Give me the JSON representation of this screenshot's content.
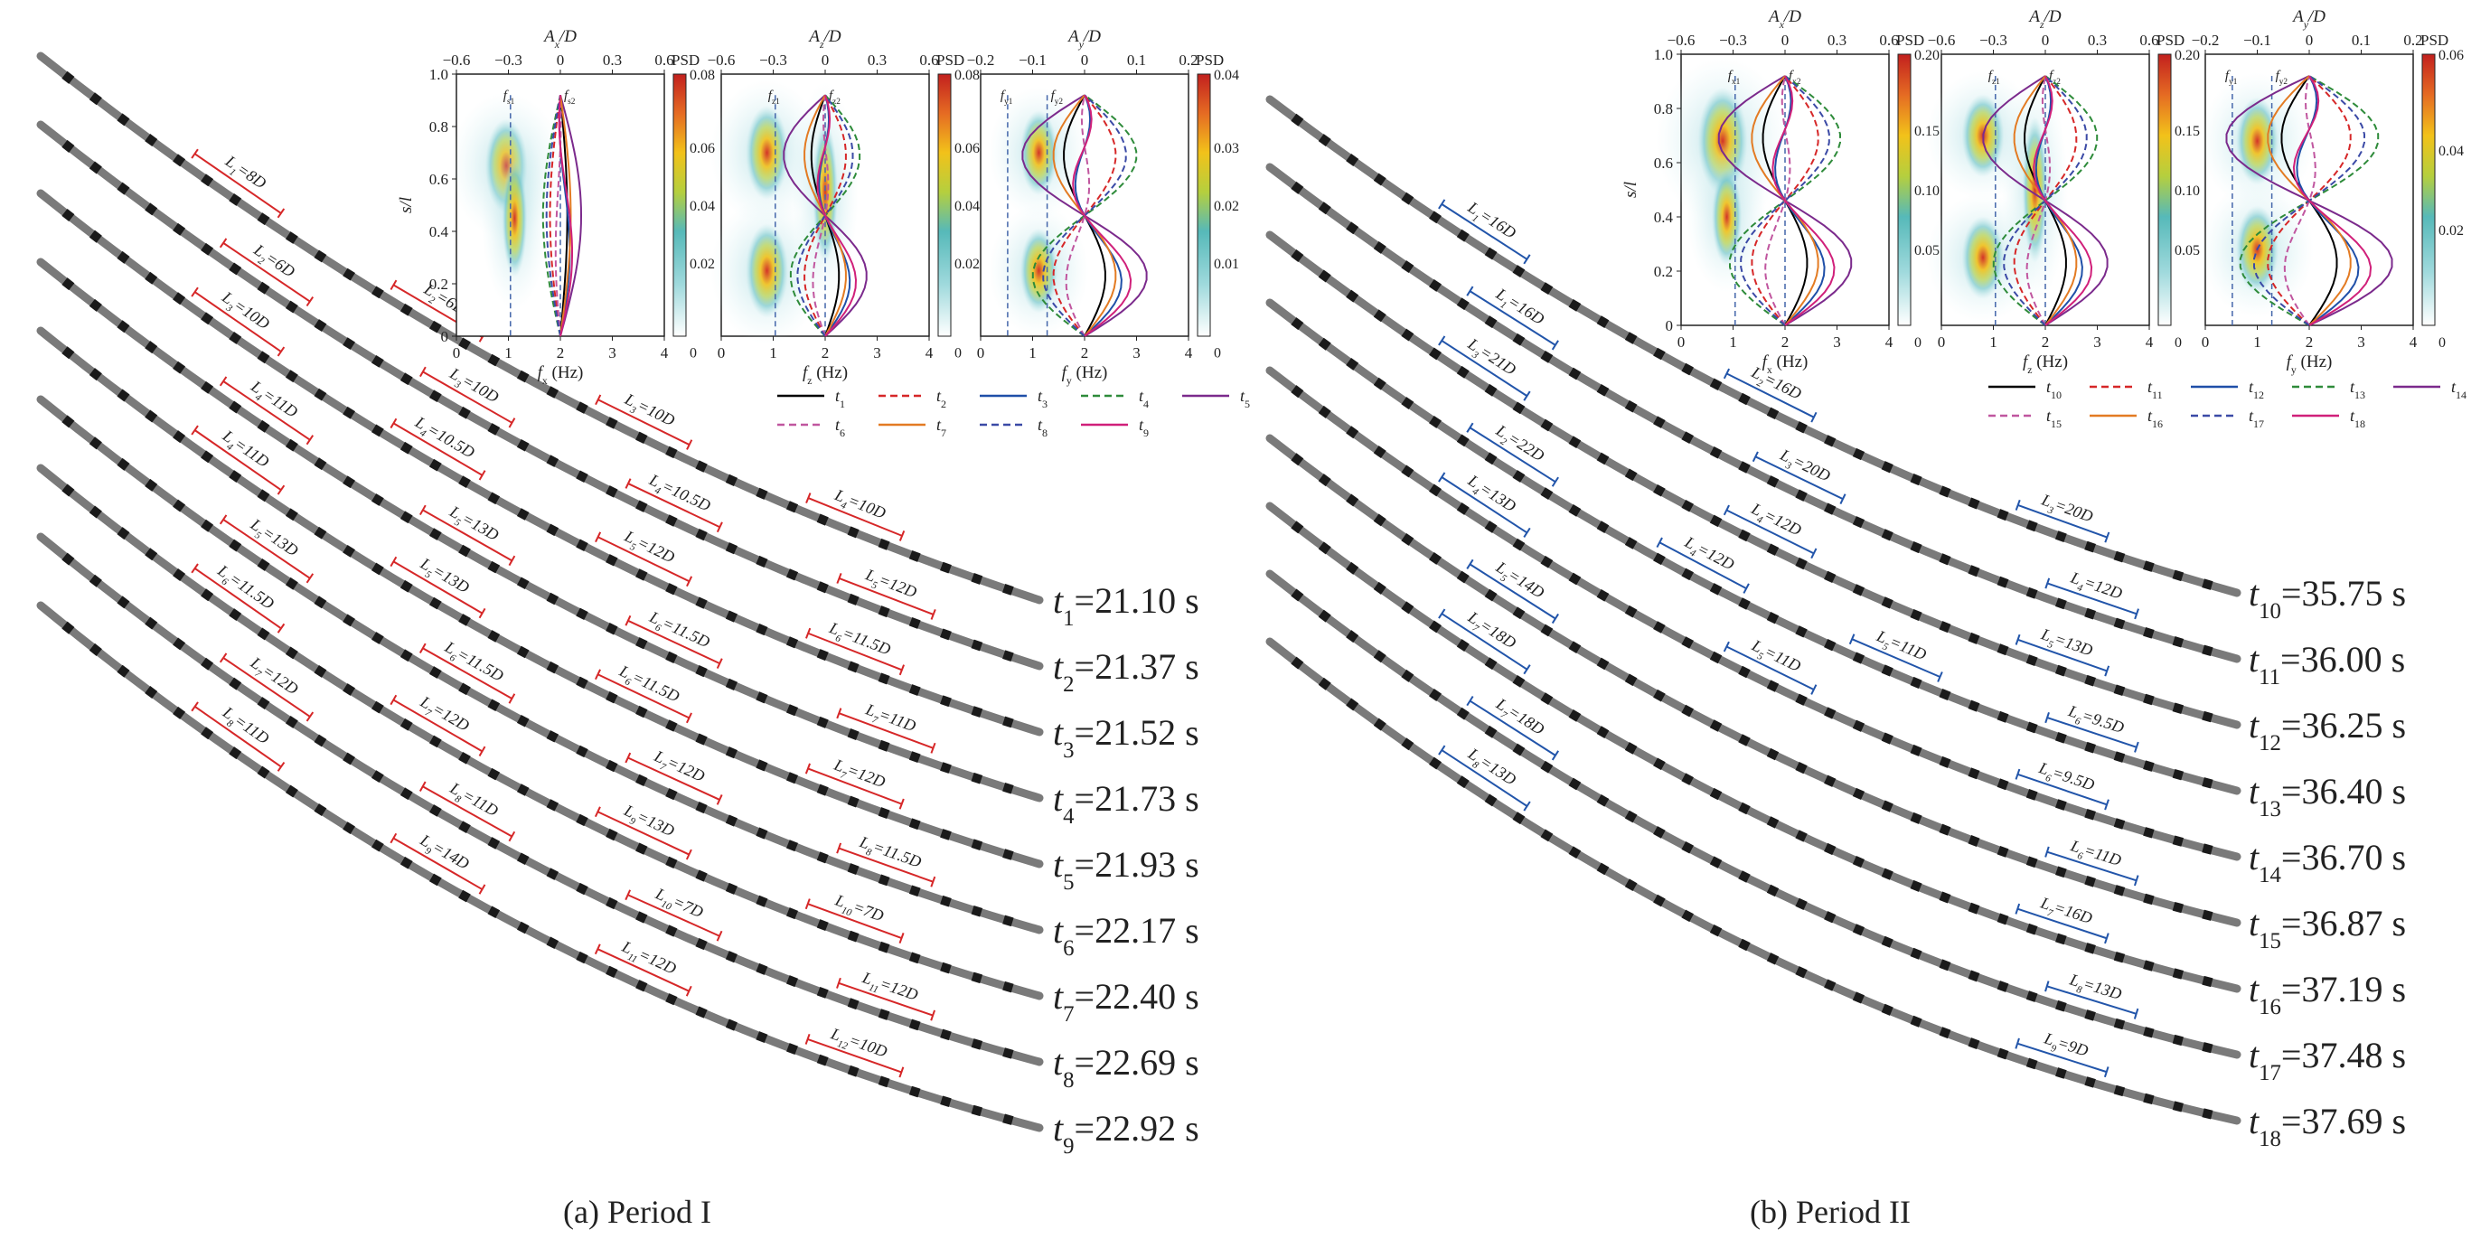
{
  "captions": {
    "a": "(a) Period I",
    "b": "(b) Period II"
  },
  "colorbar_label": "PSD",
  "colors": {
    "red_bracket": "#d62728",
    "blue_bracket": "#2255aa",
    "snapshot": "#777777",
    "line_solid_black": "#000000",
    "line_red": "#d62728",
    "line_blue": "#1f4fa8",
    "line_green": "#2e8b3a",
    "line_purple": "#7b2a8c",
    "line_pink": "#c0569f",
    "line_orange": "#e37b23",
    "line_navy": "#3b4aa6",
    "line_magenta": "#d0207a"
  },
  "panels": [
    {
      "id": "a",
      "snapshots": [
        {
          "t": "t",
          "sub": "1",
          "val": "=21.10 s",
          "segments": [
            {
              "L": "L",
              "sub": "1",
              "val": "=8D"
            },
            {
              "L": "L",
              "sub": "2",
              "val": "=6D"
            },
            {
              "L": "L",
              "sub": "3",
              "val": "=10D"
            },
            {
              "L": "L",
              "sub": "4",
              "val": "=10D"
            }
          ]
        },
        {
          "t": "t",
          "sub": "2",
          "val": "=21.37 s",
          "segments": [
            {
              "L": "L",
              "sub": "2",
              "val": "=6D"
            },
            {
              "L": "L",
              "sub": "3",
              "val": "=10D"
            },
            {
              "L": "L",
              "sub": "4",
              "val": "=10.5D"
            },
            {
              "L": "L",
              "sub": "5",
              "val": "=12D"
            }
          ]
        },
        {
          "t": "t",
          "sub": "3",
          "val": "=21.52 s",
          "segments": [
            {
              "L": "L",
              "sub": "3",
              "val": "=10D"
            },
            {
              "L": "L",
              "sub": "4",
              "val": "=10.5D"
            },
            {
              "L": "L",
              "sub": "5",
              "val": "=12D"
            },
            {
              "L": "L",
              "sub": "6",
              "val": "=11.5D"
            }
          ]
        },
        {
          "t": "t",
          "sub": "4",
          "val": "=21.73 s",
          "segments": [
            {
              "L": "L",
              "sub": "4",
              "val": "=11D"
            },
            {
              "L": "L",
              "sub": "5",
              "val": "=13D"
            },
            {
              "L": "L",
              "sub": "6",
              "val": "=11.5D"
            },
            {
              "L": "L",
              "sub": "7",
              "val": "=11D"
            }
          ]
        },
        {
          "t": "t",
          "sub": "5",
          "val": "=21.93 s",
          "segments": [
            {
              "L": "L",
              "sub": "4",
              "val": "=11D"
            },
            {
              "L": "L",
              "sub": "5",
              "val": "=13D"
            },
            {
              "L": "L",
              "sub": "6",
              "val": "=11.5D"
            },
            {
              "L": "L",
              "sub": "7",
              "val": "=12D"
            }
          ]
        },
        {
          "t": "t",
          "sub": "6",
          "val": "=22.17 s",
          "segments": [
            {
              "L": "L",
              "sub": "5",
              "val": "=13D"
            },
            {
              "L": "L",
              "sub": "6",
              "val": "=11.5D"
            },
            {
              "L": "L",
              "sub": "7",
              "val": "=12D"
            },
            {
              "L": "L",
              "sub": "8",
              "val": "=11.5D"
            }
          ]
        },
        {
          "t": "t",
          "sub": "7",
          "val": "=22.40 s",
          "segments": [
            {
              "L": "L",
              "sub": "6",
              "val": "=11.5D"
            },
            {
              "L": "L",
              "sub": "7",
              "val": "=12D"
            },
            {
              "L": "L",
              "sub": "9",
              "val": "=13D"
            },
            {
              "L": "L",
              "sub": "10",
              "val": "=7D"
            }
          ]
        },
        {
          "t": "t",
          "sub": "8",
          "val": "=22.69 s",
          "segments": [
            {
              "L": "L",
              "sub": "7",
              "val": "=12D"
            },
            {
              "L": "L",
              "sub": "8",
              "val": "=11D"
            },
            {
              "L": "L",
              "sub": "10",
              "val": "=7D"
            },
            {
              "L": "L",
              "sub": "11",
              "val": "=12D"
            }
          ]
        },
        {
          "t": "t",
          "sub": "9",
          "val": "=22.92 s",
          "segments": [
            {
              "L": "L",
              "sub": "8",
              "val": "=11D"
            },
            {
              "L": "L",
              "sub": "9",
              "val": "=14D"
            },
            {
              "L": "L",
              "sub": "11",
              "val": "=12D"
            },
            {
              "L": "L",
              "sub": "12",
              "val": "=10D"
            }
          ]
        }
      ],
      "extra_segments": [
        {
          "L": "L",
          "sub": "10",
          "val": "=7D"
        },
        {
          "L": "L",
          "sub": "9",
          "val": "=14D"
        },
        {
          "L": "L",
          "sub": "8",
          "val": "=11D"
        }
      ],
      "insets": [
        {
          "top_label": "A",
          "top_sub": "x",
          "top_suffix": "/D",
          "ticks_top": [
            "−0.6",
            "−0.3",
            "0",
            "0.3",
            "0.6"
          ],
          "bottom_var": "f",
          "bottom_sub": "x",
          "bottom_unit": " (Hz)",
          "ticks_bottom": [
            "0",
            "1",
            "2",
            "3",
            "4"
          ],
          "cbar_ticks": [
            "0.08",
            "0.06",
            "0.04",
            "0.02",
            "0"
          ],
          "fs_labels": [
            {
              "f": "f",
              "sub": "s1"
            },
            {
              "f": "f",
              "sub": "s2"
            }
          ],
          "ylabel": "s/l",
          "yticks": [
            "1.0",
            "0.8",
            "0.6",
            "0.4",
            "0.2",
            "0"
          ]
        },
        {
          "top_label": "A",
          "top_sub": "z",
          "top_suffix": "/D",
          "ticks_top": [
            "−0.6",
            "−0.3",
            "0",
            "0.3",
            "0.6"
          ],
          "bottom_var": "f",
          "bottom_sub": "z",
          "bottom_unit": " (Hz)",
          "ticks_bottom": [
            "0",
            "1",
            "2",
            "3",
            "4"
          ],
          "cbar_ticks": [
            "0.08",
            "0.06",
            "0.04",
            "0.02",
            "0"
          ],
          "fs_labels": [
            {
              "f": "f",
              "sub": "z1"
            },
            {
              "f": "f",
              "sub": "z2"
            }
          ]
        },
        {
          "top_label": "A",
          "top_sub": "y",
          "top_suffix": "/D",
          "ticks_top": [
            "−0.2",
            "−0.1",
            "0",
            "0.1",
            "0.2"
          ],
          "bottom_var": "f",
          "bottom_sub": "y",
          "bottom_unit": " (Hz)",
          "ticks_bottom": [
            "0",
            "1",
            "2",
            "3",
            "4"
          ],
          "cbar_ticks": [
            "0.04",
            "0.03",
            "0.02",
            "0.01",
            "0"
          ],
          "fs_labels": [
            {
              "f": "f",
              "sub": "y1"
            },
            {
              "f": "f",
              "sub": "y2"
            }
          ]
        }
      ],
      "legend": [
        [
          "1",
          "2",
          "3",
          "4",
          "5"
        ],
        [
          "6",
          "7",
          "8",
          "9"
        ]
      ]
    },
    {
      "id": "b",
      "snapshots": [
        {
          "t": "t",
          "sub": "10",
          "val": "=35.75 s",
          "segments": [
            {
              "L": "L",
              "sub": "1",
              "val": "=16D"
            },
            {
              "L": "L",
              "sub": "2",
              "val": "=16D"
            },
            {
              "L": "L",
              "sub": "3",
              "val": "=20D"
            }
          ]
        },
        {
          "t": "t",
          "sub": "11",
          "val": "=36.00 s",
          "segments": [
            {
              "L": "L",
              "sub": "1",
              "val": "=16D"
            },
            {
              "L": "L",
              "sub": "3",
              "val": "=20D"
            },
            {
              "L": "L",
              "sub": "4",
              "val": "=12D"
            }
          ]
        },
        {
          "t": "t",
          "sub": "12",
          "val": "=36.25 s",
          "segments": [
            {
              "L": "L",
              "sub": "3",
              "val": "=21D"
            },
            {
              "L": "L",
              "sub": "4",
              "val": "=12D"
            },
            {
              "L": "L",
              "sub": "5",
              "val": "=13D"
            }
          ]
        },
        {
          "t": "t",
          "sub": "13",
          "val": "=36.40 s",
          "segments": [
            {
              "L": "L",
              "sub": "2",
              "val": "=22D"
            },
            {
              "L": "L",
              "sub": "4",
              "val": "=12D"
            },
            {
              "L": "L",
              "sub": "5",
              "val": "=11D"
            },
            {
              "L": "L",
              "sub": "6",
              "val": "=9.5D"
            }
          ]
        },
        {
          "t": "t",
          "sub": "14",
          "val": "=36.70 s",
          "segments": [
            {
              "L": "L",
              "sub": "4",
              "val": "=13D"
            },
            {
              "L": "L",
              "sub": "5",
              "val": "=11D"
            },
            {
              "L": "L",
              "sub": "6",
              "val": "=9.5D"
            }
          ]
        },
        {
          "t": "t",
          "sub": "15",
          "val": "=36.87 s",
          "segments": [
            {
              "L": "L",
              "sub": "5",
              "val": "=14D"
            },
            {
              "L": "L",
              "sub": "6",
              "val": "=11D"
            }
          ]
        },
        {
          "t": "t",
          "sub": "16",
          "val": "=37.19 s",
          "segments": [
            {
              "L": "L",
              "sub": "7",
              "val": "=18D"
            },
            {
              "L": "L",
              "sub": "7",
              "val": "=16D"
            }
          ]
        },
        {
          "t": "t",
          "sub": "17",
          "val": "=37.48 s",
          "segments": [
            {
              "L": "L",
              "sub": "7",
              "val": "=18D"
            },
            {
              "L": "L",
              "sub": "8",
              "val": "=13D"
            }
          ]
        },
        {
          "t": "t",
          "sub": "18",
          "val": "=37.69 s",
          "segments": [
            {
              "L": "L",
              "sub": "8",
              "val": "=13D"
            },
            {
              "L": "L",
              "sub": "9",
              "val": "=9D"
            }
          ]
        }
      ],
      "insets": [
        {
          "top_label": "A",
          "top_sub": "x",
          "top_suffix": "/D",
          "ticks_top": [
            "−0.6",
            "−0.3",
            "0",
            "0.3",
            "0.6"
          ],
          "bottom_var": "f",
          "bottom_sub": "x",
          "bottom_unit": " (Hz)",
          "ticks_bottom": [
            "0",
            "1",
            "2",
            "3",
            "4"
          ],
          "cbar_ticks": [
            "0.20",
            "0.15",
            "0.10",
            "0.05",
            "0"
          ],
          "fs_labels": [
            {
              "f": "f",
              "sub": "x1"
            },
            {
              "f": "f",
              "sub": "x2"
            }
          ],
          "ylabel": "s/l",
          "yticks": [
            "1.0",
            "0.8",
            "0.6",
            "0.4",
            "0.2",
            "0"
          ]
        },
        {
          "top_label": "A",
          "top_sub": "z",
          "top_suffix": "/D",
          "ticks_top": [
            "−0.6",
            "−0.3",
            "0",
            "0.3",
            "0.6"
          ],
          "bottom_var": "f",
          "bottom_sub": "z",
          "bottom_unit": " (Hz)",
          "ticks_bottom": [
            "0",
            "1",
            "2",
            "3",
            "4"
          ],
          "cbar_ticks": [
            "0.20",
            "0.15",
            "0.10",
            "0.05",
            "0"
          ],
          "fs_labels": [
            {
              "f": "f",
              "sub": "z1"
            },
            {
              "f": "f",
              "sub": "z2"
            }
          ]
        },
        {
          "top_label": "A",
          "top_sub": "y",
          "top_suffix": "/D",
          "ticks_top": [
            "−0.2",
            "−0.1",
            "0",
            "0.1",
            "0.2"
          ],
          "bottom_var": "f",
          "bottom_sub": "y",
          "bottom_unit": " (Hz)",
          "ticks_bottom": [
            "0",
            "1",
            "2",
            "3",
            "4"
          ],
          "cbar_ticks": [
            "0.06",
            "0.04",
            "0.02",
            "0"
          ],
          "fs_labels": [
            {
              "f": "f",
              "sub": "y1"
            },
            {
              "f": "f",
              "sub": "y2"
            }
          ]
        }
      ],
      "legend": [
        [
          "10",
          "11",
          "12",
          "13",
          "14"
        ],
        [
          "15",
          "16",
          "17",
          "18"
        ]
      ]
    }
  ]
}
